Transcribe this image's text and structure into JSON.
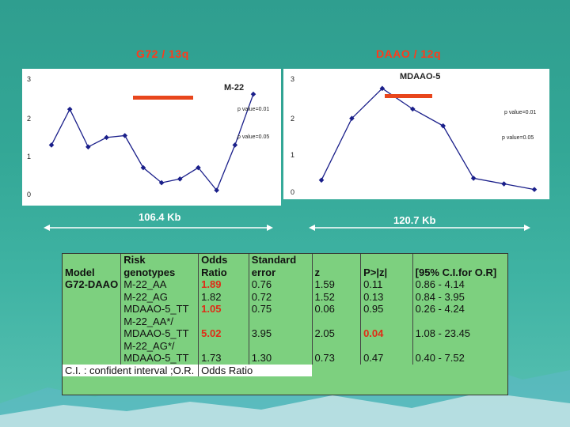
{
  "titles": {
    "left": "G72 / 13q",
    "right": "DAAO / 12q"
  },
  "left_plot": {
    "marker_label": "M-22",
    "pvalue_01": "p value=0.01",
    "pvalue_05": "p value=0.05",
    "yticks": [
      "3",
      "2",
      "1",
      "0"
    ],
    "span_label": "106.4 Kb",
    "points": [
      1.25,
      2.2,
      1.2,
      1.45,
      1.5,
      0.65,
      0.25,
      0.35,
      0.65,
      0.05,
      1.25,
      2.6
    ]
  },
  "right_plot": {
    "marker_label": "MDAAO-5",
    "pvalue_01": "p value=0.01",
    "pvalue_05": "p value=0.05",
    "yticks": [
      "3",
      "2",
      "1",
      "0"
    ],
    "span_label": "120.7 Kb",
    "points": [
      0.3,
      1.95,
      2.75,
      2.2,
      1.75,
      0.35,
      0.2,
      0.05
    ]
  },
  "table": {
    "header": {
      "model": "Model",
      "risk": [
        "Risk",
        "genotypes"
      ],
      "or": [
        "Odds",
        "Ratio"
      ],
      "se": [
        "Standard",
        "error"
      ],
      "z": "z",
      "p": "P>|z|",
      "ci": "[95% C.I.for O.R]"
    },
    "model_name": "G72-DAAO",
    "rows": [
      {
        "risk": [
          "M-22_AA"
        ],
        "or": "1.89",
        "or_red": true,
        "se": "0.76",
        "z": "1.59",
        "p": "0.11",
        "p_red": false,
        "ci": "0.86 -  4.14"
      },
      {
        "risk": [
          "M-22_AG"
        ],
        "or": "1.82",
        "or_red": false,
        "se": "0.72",
        "z": "1.52",
        "p": "0.13",
        "p_red": false,
        "ci": "0.84 -  3.95"
      },
      {
        "risk": [
          "MDAAO-5_TT"
        ],
        "or": "1.05",
        "or_red": true,
        "se": "0.75",
        "z": "0.06",
        "p": "0.95",
        "p_red": false,
        "ci": "0.26 -   4.24"
      },
      {
        "risk": [
          "M-22_AA*/",
          "MDAAO-5_TT"
        ],
        "or": "5.02",
        "or_red": true,
        "se": "3.95",
        "z": "2.05",
        "p": "0.04",
        "p_red": true,
        "ci": "1.08 - 23.45"
      },
      {
        "risk": [
          "M-22_AG*/",
          "MDAAO-5_TT"
        ],
        "or": "1.73",
        "or_red": false,
        "se": "1.30",
        "z": "0.73",
        "p": "0.47",
        "p_red": false,
        "ci": "0.40 -  7.52"
      }
    ],
    "footer": [
      "C.I. : confident interval ;O.R.",
      "Odds Ratio"
    ]
  },
  "colors": {
    "significance_bar": "#e8461c",
    "title": "#ff3a1a",
    "table_bg": "#7dd07f",
    "highlight": "#e02b16"
  }
}
